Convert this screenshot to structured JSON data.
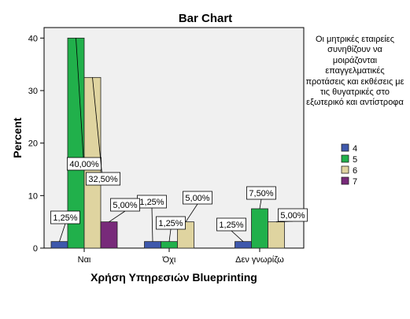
{
  "chart_data": {
    "type": "bar",
    "title": "Bar Chart",
    "xlabel": "Χρήση Υπηρεσιών Blueprinting",
    "ylabel": "Percent",
    "ylim": [
      0,
      42
    ],
    "yticks": [
      0,
      10,
      20,
      30,
      40
    ],
    "categories": [
      "Ναι",
      "Όχι",
      "Δεν γνωρίζω"
    ],
    "grid": false,
    "legend": {
      "title": "Οι μητρικές εταιρείες συνηθίζουν να μοιράζονται επαγγελματικές προτάσεις και εκθέσεις με τις θυγατρικές στο εξωτερικό και αντίστροφα",
      "placement": "right"
    },
    "series": [
      {
        "name": "4",
        "color": "#3e58ac",
        "values": [
          1.25,
          1.25,
          1.25
        ],
        "labels": [
          "1,25%",
          "1,25%",
          "1,25%"
        ]
      },
      {
        "name": "5",
        "color": "#21b04b",
        "values": [
          40.0,
          1.25,
          7.5
        ],
        "labels": [
          "40,00%",
          "1,25%",
          "7,50%"
        ]
      },
      {
        "name": "6",
        "color": "#dfd4a0",
        "values": [
          32.5,
          5.0,
          5.0
        ],
        "labels": [
          "32,50%",
          "5,00%",
          "5,00%"
        ]
      },
      {
        "name": "7",
        "color": "#782a7a",
        "values": [
          5.0,
          null,
          null
        ],
        "labels": [
          "5,00%",
          null,
          null
        ]
      }
    ]
  }
}
